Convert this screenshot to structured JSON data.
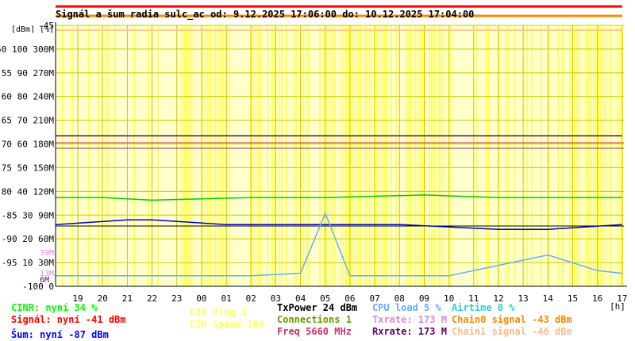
{
  "chart_data": {
    "type": "line",
    "title": "Signál a šum radia sulc_ac od: 9.12.2025 17:06:00 do: 10.12.2025 17:04:00",
    "unit_labels": [
      "[dBm]",
      "[%]"
    ],
    "x_unit": "[h]",
    "x_ticks": [
      "19",
      "20",
      "21",
      "22",
      "23",
      "00",
      "01",
      "02",
      "03",
      "04",
      "05",
      "06",
      "07",
      "08",
      "09",
      "10",
      "11",
      "12",
      "13",
      "14",
      "15",
      "16",
      "17"
    ],
    "y_ticks": [
      {
        "dbm": "-45",
        "pct": "",
        "rate": ""
      },
      {
        "dbm": "-50",
        "pct": "100",
        "rate": "300M"
      },
      {
        "dbm": "-55",
        "pct": "90",
        "rate": "270M"
      },
      {
        "dbm": "-60",
        "pct": "80",
        "rate": "240M"
      },
      {
        "dbm": "-65",
        "pct": "70",
        "rate": "210M"
      },
      {
        "dbm": "-70",
        "pct": "60",
        "rate": "180M"
      },
      {
        "dbm": "-75",
        "pct": "50",
        "rate": "150M"
      },
      {
        "dbm": "-80",
        "pct": "40",
        "rate": "120M"
      },
      {
        "dbm": "-85",
        "pct": "30",
        "rate": "90M"
      },
      {
        "dbm": "-90",
        "pct": "20",
        "rate": "60M"
      },
      {
        "dbm": "-95",
        "pct": "10",
        "rate": "30M"
      },
      {
        "dbm": "-100",
        "pct": "0",
        "rate": ""
      }
    ],
    "extra_rate_labels": [
      "39M",
      "13M",
      "6M"
    ],
    "ylim_dbm": [
      -100,
      -45
    ],
    "xlim_hours": [
      18.1,
      41.07
    ],
    "grid": true,
    "series": [
      {
        "name": "Signál",
        "unit": "dBm",
        "x": [
          18.1,
          24,
          30,
          36,
          41
        ],
        "values": [
          -41,
          -41,
          -41,
          -41,
          -41
        ]
      },
      {
        "name": "Chain0 signal",
        "unit": "dBm",
        "x": [
          18.1,
          24,
          30,
          36,
          41
        ],
        "values": [
          -43,
          -43,
          -43,
          -43,
          -43
        ]
      },
      {
        "name": "Chain1 signal",
        "unit": "dBm",
        "x": [
          18.1,
          24,
          30,
          36,
          41
        ],
        "values": [
          -46,
          -46,
          -46,
          -46,
          -46
        ]
      },
      {
        "name": "Šum",
        "unit": "dBm",
        "x": [
          18.1,
          21,
          22,
          25,
          30,
          32,
          36,
          38,
          41
        ],
        "values": [
          -87,
          -86,
          -86,
          -87,
          -87,
          -87,
          -88,
          -88,
          -87
        ]
      },
      {
        "name": "CINR",
        "unit": "%",
        "x": [
          18.1,
          20,
          22,
          26,
          29,
          33,
          36,
          41
        ],
        "values": [
          34,
          34,
          33,
          34,
          34,
          35,
          34,
          34
        ]
      },
      {
        "name": "Txrate",
        "unit": "M",
        "x": [
          18.1,
          41
        ],
        "values": [
          173,
          173
        ]
      },
      {
        "name": "Rxrate",
        "unit": "M",
        "x": [
          18.1,
          41
        ],
        "values": [
          173,
          173
        ]
      },
      {
        "name": "CPU load",
        "unit": "%",
        "x": [
          18.1,
          22,
          26,
          28,
          29,
          30,
          34,
          38,
          40,
          41
        ],
        "values": [
          4,
          4,
          4,
          5,
          28,
          4,
          4,
          12,
          6,
          5
        ]
      }
    ],
    "legend": [
      {
        "text": "CINR: nyní 34 %",
        "color": "#00ff00"
      },
      {
        "text": "Signál: nyní -41 dBm",
        "color": "#ff0000"
      },
      {
        "text": "Šum: nyní -87 dBm",
        "color": "#0000ff"
      },
      {
        "text": "ETH Plug 1",
        "color": "#ffff66"
      },
      {
        "text": "ETH Speed 100",
        "color": "#ffff66"
      },
      {
        "text": "TxPower 24 dBm",
        "color": "#000000"
      },
      {
        "text": "Connections 1",
        "color": "#669900"
      },
      {
        "text": "Freq 5660 MHz",
        "color": "#cc3366"
      },
      {
        "text": "CPU load 5 %",
        "color": "#66aaff"
      },
      {
        "text": "Txrate: 173 M",
        "color": "#dd88dd"
      },
      {
        "text": "Rxrate: 173 M",
        "color": "#660066"
      },
      {
        "text": "Airtime 0 %",
        "color": "#33cccc"
      },
      {
        "text": "Chain0 signal -43 dBm",
        "color": "#ff8800"
      },
      {
        "text": "Chain1 signal -46 dBm",
        "color": "#ffbb88"
      }
    ],
    "colors": {
      "background": "#ffffff",
      "plot_background": "#ffffcc",
      "eth_band": "#ffff66",
      "grid": "#c8c800",
      "axis": "#000000",
      "title": "#000000",
      "title_bg": "#ff9900"
    }
  }
}
